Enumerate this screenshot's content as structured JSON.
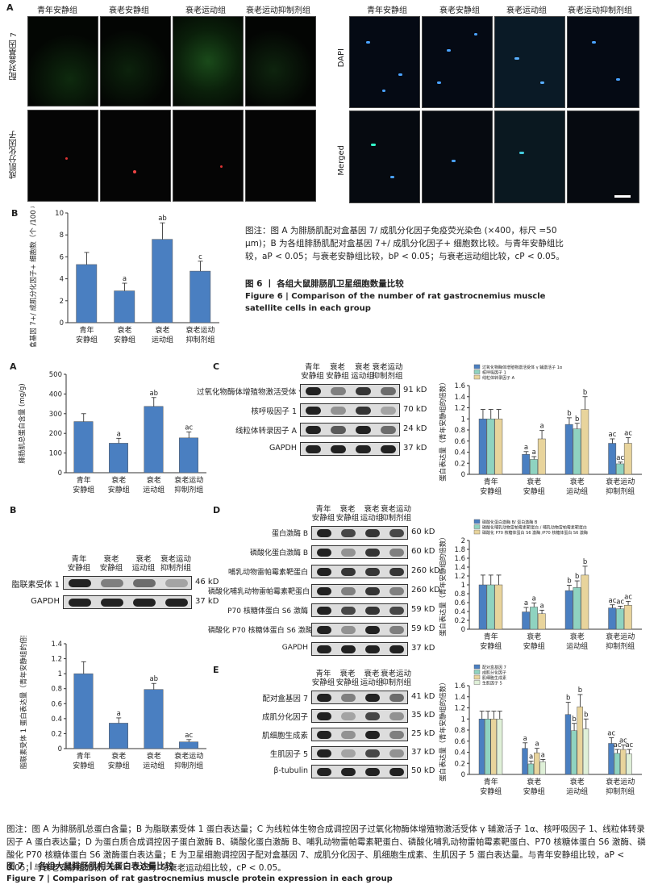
{
  "fig6": {
    "label_a": "A",
    "label_b": "B",
    "groups": [
      "青年安静组",
      "衰老安静组",
      "衰老运动组",
      "衰老运动抑制剂组"
    ],
    "row_labels_left": [
      "配对盒基因 7",
      "成肌分化因子"
    ],
    "row_labels_right": [
      "DAPI",
      "Merged"
    ],
    "caption_note": "图注：图 A 为腓肠肌配对盒基因 7/ 成肌分化因子免疫荧光染色 (×400，标尺 =50 μm)；B 为各组腓肠肌配对盒基因 7+/ 成肌分化因子+ 细胞数比较。与青年安静组比较，aP < 0.05；与衰老安静组比较，bP < 0.05；与衰老运动组比较，cP < 0.05。",
    "caption_title": "图 6 丨 各组大鼠腓肠肌卫星细胞数量比较",
    "caption_en": "Figure 6 | Comparison of the number of rat gastrocnemius muscle satellite cells in each group"
  },
  "fig7": {
    "labels": {
      "A": "A",
      "B": "B",
      "C": "C",
      "D": "D",
      "E": "E"
    },
    "groups_wrapped": [
      [
        "青年",
        "安静组"
      ],
      [
        "衰老",
        "安静组"
      ],
      [
        "衰老",
        "运动组"
      ],
      [
        "衰老运动",
        "抑制剂组"
      ]
    ],
    "blot_B": {
      "rows": [
        {
          "name": "脂联素受体 1",
          "kd": "46 kD"
        },
        {
          "name": "GAPDH",
          "kd": "37 kD"
        }
      ]
    },
    "blot_C": {
      "rows": [
        {
          "name": "过氧化物酶体增殖物激活受体 γ 辅激活子 1α",
          "kd": "91 kD"
        },
        {
          "name": "核呼吸因子 1",
          "kd": "70 kD"
        },
        {
          "name": "线粒体转录因子 A",
          "kd": "24 kD"
        },
        {
          "name": "GAPDH",
          "kd": "37 kD"
        }
      ]
    },
    "blot_D": {
      "rows": [
        {
          "name": "蛋白激酶 B",
          "kd": "60 kD"
        },
        {
          "name": "磷酸化蛋白激酶 B",
          "kd": "60 kD"
        },
        {
          "name": "哺乳动物雷帕霉素靶蛋白",
          "kd": "260 kD"
        },
        {
          "name": "磷酸化哺乳动物雷帕霉素靶蛋白",
          "kd": "260 kD"
        },
        {
          "name": "P70 核糖体蛋白 S6 激酶",
          "kd": "59 kD"
        },
        {
          "name": "磷酸化 P70 核糖体蛋白 S6 激酶",
          "kd": "59 kD"
        },
        {
          "name": "GAPDH",
          "kd": "37 kD"
        }
      ]
    },
    "blot_E": {
      "rows": [
        {
          "name": "配对盒基因 7",
          "kd": "41 kD"
        },
        {
          "name": "成肌分化因子",
          "kd": "35 kD"
        },
        {
          "name": "肌细胞生成素",
          "kd": "25 kD"
        },
        {
          "name": "生肌因子 5",
          "kd": "37 kD"
        },
        {
          "name": "β-tubulin",
          "kd": "50 kD"
        }
      ]
    },
    "caption_note": "图注：图 A 为腓肠肌总蛋白含量；B 为脂联素受体 1 蛋白表达量；C 为线粒体生物合成调控因子过氧化物酶体增殖物激活受体 γ 辅激活子 1α、核呼吸因子 1、线粒体转录因子 A 蛋白表达量；D 为蛋白质合成调控因子蛋白激酶 B、磷酸化蛋白激酶 B、哺乳动物雷帕霉素靶蛋白、磷酸化哺乳动物雷帕霉素靶蛋白、P70 核糖体蛋白 S6 激酶、磷酸化 P70 核糖体蛋白 S6 激酶蛋白表达量；E 为卫星细胞调控因子配对盒基因 7、成肌分化因子、肌细胞生成素、生肌因子 5 蛋白表达量。与青年安静组比较，aP < 0.05；与衰老安静组比较，bP < 0.05；与衰老运动组比较，cP < 0.05。",
    "caption_title": "图 7 丨 各组大鼠腓肠肌相关蛋白表达量比较",
    "caption_en": "Figure 7 | Comparison of rat gastrocnemius muscle protein expression in each group"
  },
  "colors": {
    "blue": "#4a7fc1",
    "green": "#8fd3c0",
    "tan": "#e8d49c"
  },
  "chart_data": [
    {
      "id": "fig6B",
      "type": "bar",
      "categories": [
        "青年安静组",
        "衰老安静组",
        "衰老运动组",
        "衰老运动抑制剂组"
      ],
      "values": [
        5.3,
        2.9,
        7.6,
        4.7
      ],
      "errors": [
        1.1,
        0.7,
        1.5,
        0.9
      ],
      "sig": [
        "",
        "a",
        "ab",
        "c"
      ],
      "ylabel": "配对盒基因 7+/ 成肌分化因子+ 细胞数（个 /100 根肌纤维）",
      "ylim": [
        0,
        10
      ],
      "yticks": [
        0,
        2,
        4,
        6,
        8,
        10
      ]
    },
    {
      "id": "fig7A",
      "type": "bar",
      "categories": [
        "青年安静组",
        "衰老安静组",
        "衰老运动组",
        "衰老运动抑制剂组"
      ],
      "values": [
        260,
        150,
        337,
        177
      ],
      "errors": [
        40,
        25,
        45,
        30
      ],
      "sig": [
        "",
        "a",
        "ab",
        "ac"
      ],
      "ylabel": "腓肠肌总蛋白含量 (mg/g)",
      "ylim": [
        0,
        500
      ],
      "yticks": [
        0,
        100,
        200,
        300,
        400,
        500
      ]
    },
    {
      "id": "fig7B",
      "type": "bar",
      "categories": [
        "青年安静组",
        "衰老安静组",
        "衰老运动组",
        "衰老运动抑制剂组"
      ],
      "values": [
        1.0,
        0.34,
        0.79,
        0.09
      ],
      "errors": [
        0.16,
        0.07,
        0.08,
        0.03
      ],
      "sig": [
        "",
        "a",
        "ab",
        "ac"
      ],
      "ylabel": "脂联素受体 1 蛋白表达量（青年安静组的倍数）",
      "ylim": [
        0,
        1.4
      ],
      "yticks": [
        0,
        0.2,
        0.4,
        0.6,
        0.8,
        1.0,
        1.2,
        1.4
      ]
    },
    {
      "id": "fig7C",
      "type": "bar",
      "categories": [
        "青年安静组",
        "衰老安静组",
        "衰老运动组",
        "衰老运动抑制剂组"
      ],
      "series": [
        {
          "name": "过氧化物酶体增殖物激活受体 γ 辅激活子 1α",
          "values": [
            1.0,
            0.36,
            0.9,
            0.56
          ],
          "errors": [
            0.17,
            0.05,
            0.12,
            0.08
          ],
          "sig": [
            "",
            "a",
            "b",
            "ac"
          ]
        },
        {
          "name": "核呼吸因子 1",
          "values": [
            1.0,
            0.27,
            0.82,
            0.19
          ],
          "errors": [
            0.17,
            0.05,
            0.1,
            0.03
          ],
          "sig": [
            "",
            "a",
            "b",
            "ac"
          ]
        },
        {
          "name": "线粒体转录因子 A",
          "values": [
            1.0,
            0.64,
            1.17,
            0.56
          ],
          "errors": [
            0.17,
            0.15,
            0.23,
            0.1
          ],
          "sig": [
            "",
            "a",
            "b",
            "ac"
          ]
        }
      ],
      "ylabel": "蛋白表达量（青年安静组的倍数）",
      "ylim": [
        0,
        1.6
      ],
      "yticks": [
        0,
        0.2,
        0.4,
        0.6,
        0.8,
        1.0,
        1.2,
        1.4,
        1.6
      ]
    },
    {
      "id": "fig7D",
      "type": "bar",
      "categories": [
        "青年安静组",
        "衰老安静组",
        "衰老运动组",
        "衰老运动抑制剂组"
      ],
      "series": [
        {
          "name": "磷酸化蛋白激酶 B/ 蛋白激酶 B",
          "values": [
            1.0,
            0.39,
            0.87,
            0.48
          ],
          "errors": [
            0.22,
            0.1,
            0.12,
            0.07
          ],
          "sig": [
            "",
            "a",
            "b",
            "ac"
          ]
        },
        {
          "name": "磷酸化哺乳动物雷帕霉素靶蛋白 / 哺乳动物雷帕霉素靶蛋白",
          "values": [
            1.0,
            0.5,
            0.94,
            0.46
          ],
          "errors": [
            0.22,
            0.09,
            0.15,
            0.06
          ],
          "sig": [
            "",
            "a",
            "b",
            "ac"
          ]
        },
        {
          "name": "磷酸化 P70 核糖体蛋白 S6 激酶 /P70 核糖体蛋白 S6 激酶",
          "values": [
            1.0,
            0.35,
            1.22,
            0.54
          ],
          "errors": [
            0.22,
            0.08,
            0.2,
            0.09
          ],
          "sig": [
            "",
            "a",
            "b",
            "ac"
          ]
        }
      ],
      "ylabel": "蛋白表达量（青年安静组的倍数）",
      "ylim": [
        0,
        2.0
      ],
      "yticks": [
        0,
        0.2,
        0.4,
        0.6,
        0.8,
        1.0,
        1.2,
        1.4,
        1.6,
        1.8,
        2.0
      ]
    },
    {
      "id": "fig7E",
      "type": "bar",
      "categories": [
        "青年安静组",
        "衰老安静组",
        "衰老运动组",
        "衰老运动抑制剂组"
      ],
      "series": [
        {
          "name": "配对盒基因 7",
          "values": [
            1.0,
            0.47,
            1.08,
            0.56
          ],
          "errors": [
            0.14,
            0.1,
            0.22,
            0.1
          ],
          "sig": [
            "",
            "a",
            "b",
            "ac"
          ]
        },
        {
          "name": "成肌分化因子",
          "values": [
            1.0,
            0.19,
            0.79,
            0.38
          ],
          "errors": [
            0.14,
            0.05,
            0.13,
            0.07
          ],
          "sig": [
            "",
            "a",
            "b",
            "ac"
          ]
        },
        {
          "name": "肌细胞生成素",
          "values": [
            1.0,
            0.39,
            1.22,
            0.45
          ],
          "errors": [
            0.14,
            0.08,
            0.22,
            0.08
          ],
          "sig": [
            "",
            "a",
            "b",
            "ac"
          ]
        },
        {
          "name": "生肌因子 5",
          "values": [
            1.0,
            0.23,
            0.82,
            0.37
          ],
          "errors": [
            0.14,
            0.04,
            0.18,
            0.08
          ],
          "sig": [
            "",
            "a",
            "b",
            "ac"
          ]
        }
      ],
      "ylabel": "蛋白表达量（青年安静组的倍数）",
      "ylim": [
        0,
        1.6
      ],
      "yticks": [
        0,
        0.2,
        0.4,
        0.6,
        0.8,
        1.0,
        1.2,
        1.4,
        1.6
      ]
    }
  ]
}
